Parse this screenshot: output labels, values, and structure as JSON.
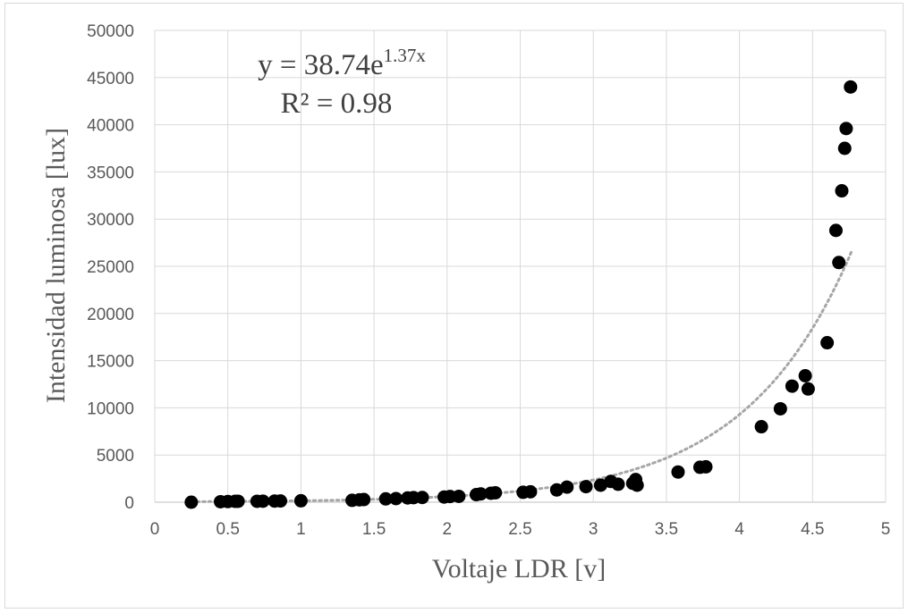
{
  "chart_data": {
    "type": "scatter",
    "xlabel": "Voltaje LDR [v]",
    "ylabel": "Intensidad luminosa [lux]",
    "xlim": [
      0,
      5
    ],
    "ylim": [
      0,
      50000
    ],
    "x_ticks": [
      "0",
      "0.5",
      "1",
      "1.5",
      "2",
      "2.5",
      "3",
      "3.5",
      "4",
      "4.5",
      "5"
    ],
    "y_ticks": [
      "0",
      "5000",
      "10000",
      "15000",
      "20000",
      "25000",
      "30000",
      "35000",
      "40000",
      "45000",
      "50000"
    ],
    "grid": true,
    "legend": "none",
    "point_color": "#000000",
    "trendline": {
      "type": "exponential",
      "coefficient": 38.74,
      "exponent": 1.37,
      "x_range": [
        0.25,
        4.77
      ],
      "color": "#a6a6a6",
      "style": "dotted",
      "equation_prefix": "y = 38.74e",
      "equation_exponent": "1.37x",
      "r_squared_text": "R² = 0.98"
    },
    "points": [
      [
        0.25,
        0
      ],
      [
        0.45,
        50
      ],
      [
        0.5,
        70
      ],
      [
        0.55,
        90
      ],
      [
        0.57,
        100
      ],
      [
        0.7,
        100
      ],
      [
        0.74,
        110
      ],
      [
        0.82,
        120
      ],
      [
        0.86,
        130
      ],
      [
        1.0,
        150
      ],
      [
        1.35,
        200
      ],
      [
        1.4,
        250
      ],
      [
        1.43,
        280
      ],
      [
        1.58,
        350
      ],
      [
        1.65,
        380
      ],
      [
        1.73,
        450
      ],
      [
        1.77,
        480
      ],
      [
        1.83,
        500
      ],
      [
        1.98,
        550
      ],
      [
        2.02,
        600
      ],
      [
        2.08,
        620
      ],
      [
        2.2,
        800
      ],
      [
        2.23,
        880
      ],
      [
        2.3,
        950
      ],
      [
        2.33,
        1000
      ],
      [
        2.52,
        1050
      ],
      [
        2.57,
        1100
      ],
      [
        2.75,
        1300
      ],
      [
        2.82,
        1600
      ],
      [
        2.95,
        1650
      ],
      [
        3.05,
        1800
      ],
      [
        3.12,
        2200
      ],
      [
        3.17,
        1900
      ],
      [
        3.27,
        2000
      ],
      [
        3.29,
        2400
      ],
      [
        3.3,
        1800
      ],
      [
        3.58,
        3200
      ],
      [
        3.73,
        3700
      ],
      [
        3.77,
        3750
      ],
      [
        4.15,
        8000
      ],
      [
        4.28,
        9900
      ],
      [
        4.36,
        12300
      ],
      [
        4.45,
        13400
      ],
      [
        4.47,
        12000
      ],
      [
        4.6,
        16900
      ],
      [
        4.66,
        28800
      ],
      [
        4.68,
        25400
      ],
      [
        4.7,
        33000
      ],
      [
        4.72,
        37500
      ],
      [
        4.73,
        39600
      ],
      [
        4.76,
        44000
      ]
    ]
  }
}
